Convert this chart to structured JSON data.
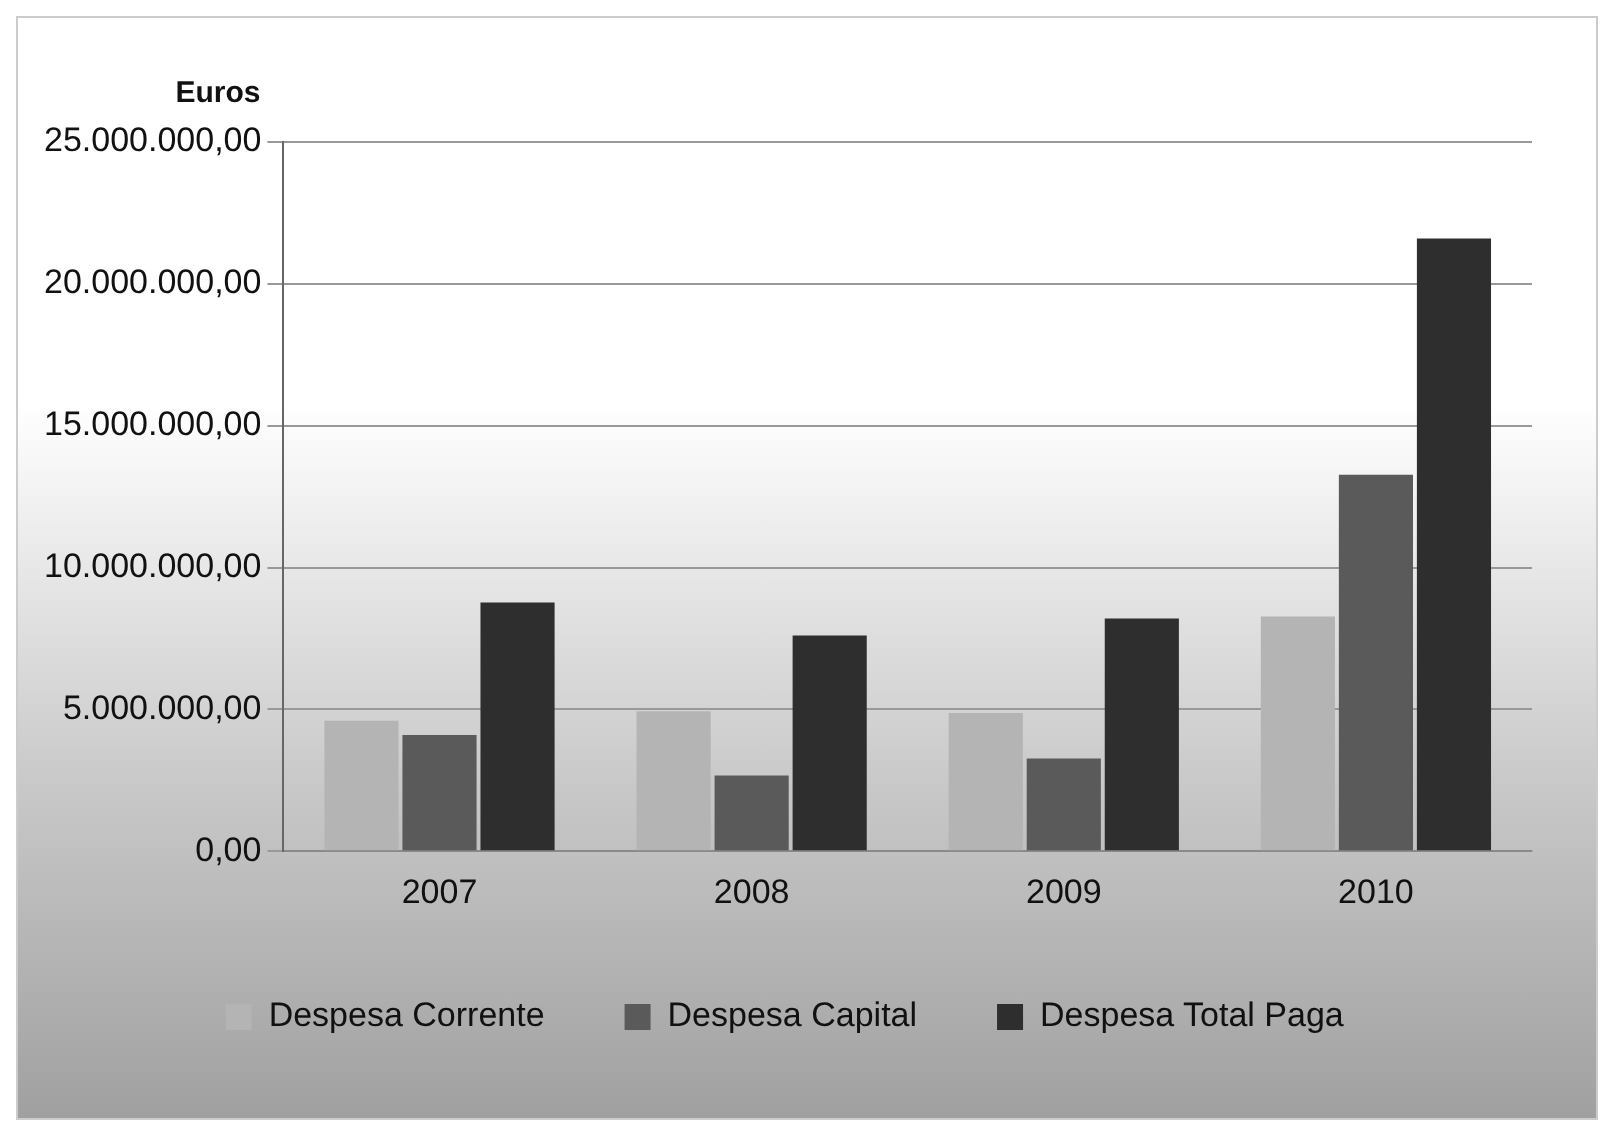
{
  "chart_data": {
    "type": "bar",
    "ylabel": "Euros",
    "categories": [
      "2007",
      "2008",
      "2009",
      "2010"
    ],
    "series": [
      {
        "name": "Despesa Corrente",
        "color": "#b4b4b4",
        "values": [
          4600000,
          4930000,
          4870000,
          8270000
        ]
      },
      {
        "name": "Despesa Capital",
        "color": "#5a5a5a",
        "values": [
          4100000,
          2670000,
          3270000,
          13270000
        ]
      },
      {
        "name": "Despesa Total Paga",
        "color": "#2e2e2e",
        "values": [
          8770000,
          7600000,
          8200000,
          21600000
        ]
      }
    ],
    "ylim": [
      0,
      25000000
    ],
    "yticks": [
      {
        "value": 0,
        "label": "0,00"
      },
      {
        "value": 5000000,
        "label": "5.000.000,00"
      },
      {
        "value": 10000000,
        "label": "10.000.000,00"
      },
      {
        "value": 15000000,
        "label": "15.000.000,00"
      },
      {
        "value": 20000000,
        "label": "20.000.000,00"
      },
      {
        "value": 25000000,
        "label": "25.000.000,00"
      }
    ],
    "grid": "y",
    "legend": "bottom"
  }
}
